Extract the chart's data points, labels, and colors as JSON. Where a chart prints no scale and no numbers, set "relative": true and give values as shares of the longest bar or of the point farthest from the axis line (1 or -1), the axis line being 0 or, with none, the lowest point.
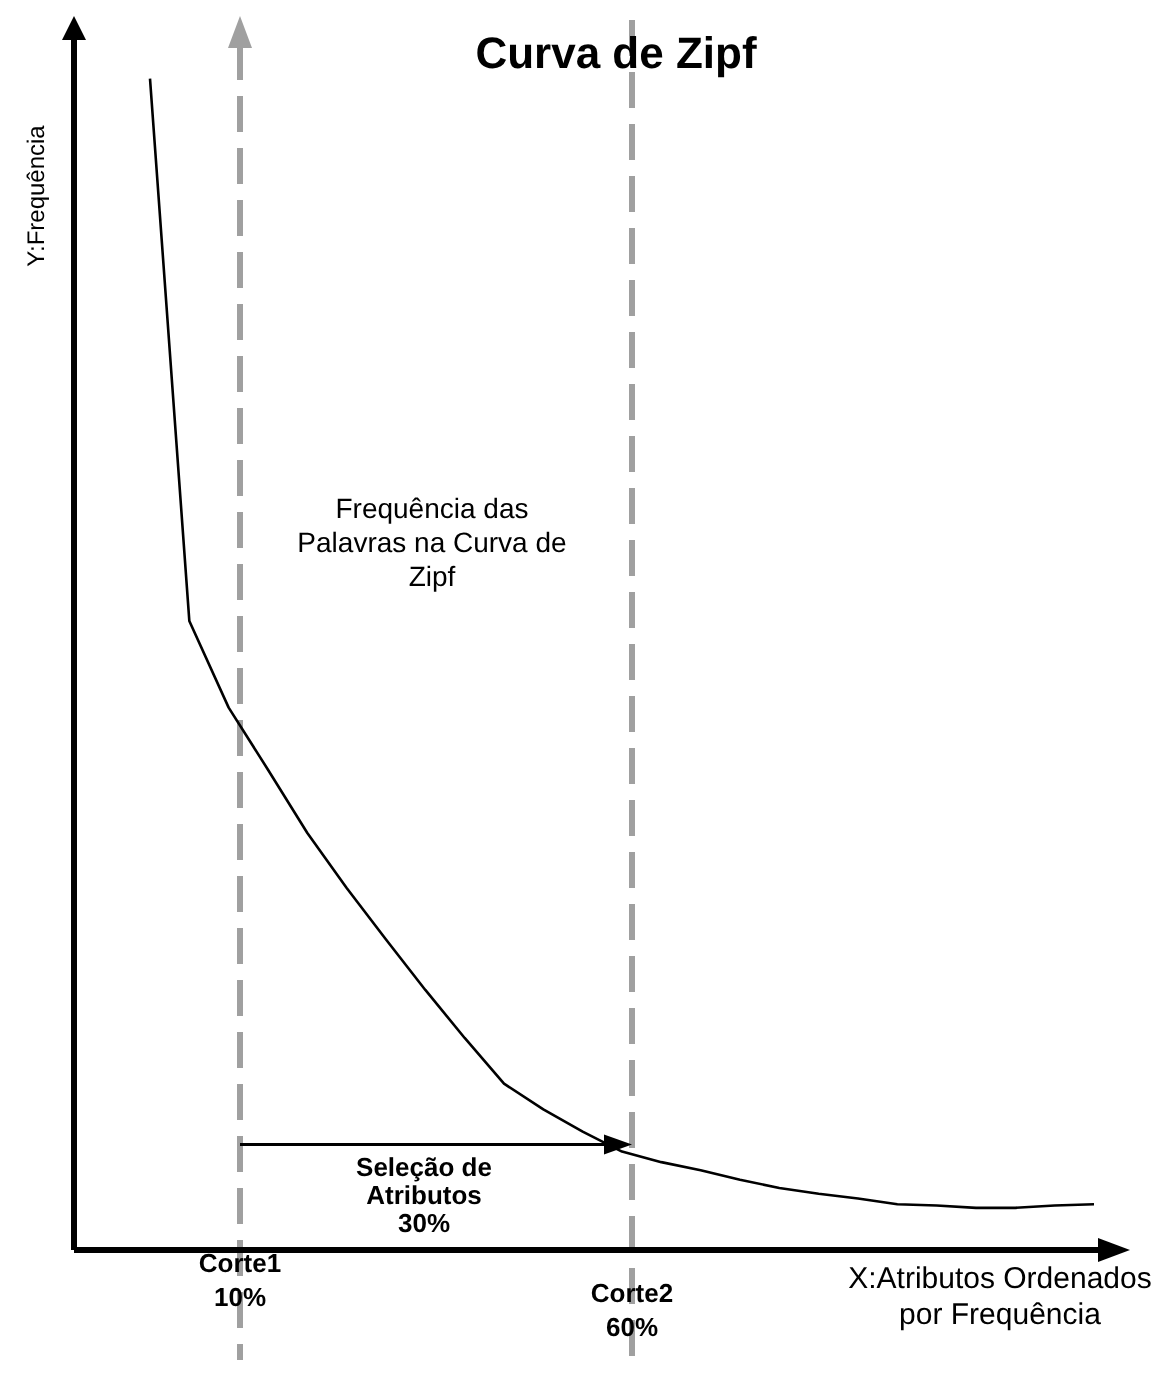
{
  "chart_data": {
    "type": "line",
    "title": "Curva de Zipf",
    "xlabel": "X:Atributos Ordenados por Frequência",
    "ylabel": "Y:Frequência",
    "relative": true,
    "marker": "none",
    "line_style": "solid",
    "categories": [
      null,
      null,
      null,
      null,
      null,
      null,
      null,
      null,
      null,
      null,
      null,
      null,
      null,
      null,
      null,
      null,
      null,
      null,
      null,
      null,
      null,
      null,
      null,
      null,
      null
    ],
    "series": [
      {
        "color": "#000000",
        "values": [
          1,
          0.537,
          0.463,
          0.41,
          0.356,
          0.309,
          0.265,
          0.222,
          0.181,
          0.142,
          0.12,
          0.101,
          0.084,
          0.075,
          0.068,
          0.06,
          0.053,
          0.048,
          0.044,
          0.039,
          0.038,
          0.036,
          0.036,
          0.038,
          0.039
        ]
      }
    ],
    "annotations": [
      "Frequência  das\nPalavras na Curva de\nZipf",
      "Seleção de\nAtributos\n30%",
      "Corte1\n10%",
      "Corte2\n60%"
    ]
  }
}
